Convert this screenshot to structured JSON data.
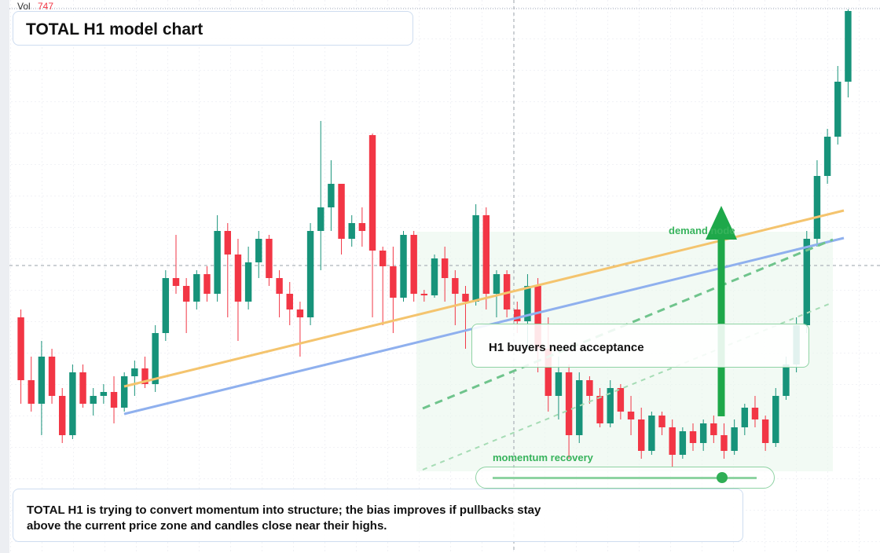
{
  "chart_data": {
    "type": "candlestick",
    "title": "TOTAL H1 model chart",
    "volume_label": "Vol",
    "volume_value": "747",
    "annotations": {
      "acceptance": "H1 buyers need acceptance",
      "demand": "demand node",
      "momentum": "momentum recovery"
    },
    "summary": [
      "TOTAL H1 is trying to convert momentum into structure; the bias improves if pullbacks stay",
      "above the current price zone and candles close near their highs."
    ],
    "up_color": "#17937a",
    "down_color": "#f23645",
    "ylim": [
      0,
      704
    ],
    "candles": [
      [
        300,
        310,
        190,
        220
      ],
      [
        220,
        250,
        180,
        190
      ],
      [
        190,
        270,
        150,
        250
      ],
      [
        250,
        260,
        190,
        200
      ],
      [
        200,
        210,
        140,
        150
      ],
      [
        150,
        240,
        145,
        230
      ],
      [
        230,
        240,
        185,
        190
      ],
      [
        190,
        210,
        175,
        200
      ],
      [
        200,
        215,
        190,
        205
      ],
      [
        205,
        225,
        165,
        185
      ],
      [
        185,
        230,
        180,
        225
      ],
      [
        225,
        245,
        200,
        235
      ],
      [
        235,
        250,
        210,
        215
      ],
      [
        215,
        290,
        205,
        280
      ],
      [
        280,
        360,
        270,
        350
      ],
      [
        350,
        405,
        330,
        340
      ],
      [
        340,
        350,
        280,
        320
      ],
      [
        320,
        360,
        310,
        355
      ],
      [
        355,
        365,
        320,
        330
      ],
      [
        330,
        430,
        320,
        410
      ],
      [
        410,
        420,
        300,
        380
      ],
      [
        380,
        400,
        270,
        320
      ],
      [
        320,
        390,
        310,
        370
      ],
      [
        370,
        410,
        350,
        400
      ],
      [
        400,
        405,
        340,
        350
      ],
      [
        350,
        360,
        300,
        330
      ],
      [
        330,
        345,
        290,
        310
      ],
      [
        310,
        320,
        250,
        300
      ],
      [
        300,
        420,
        290,
        410
      ],
      [
        410,
        550,
        360,
        440
      ],
      [
        440,
        500,
        410,
        470
      ],
      [
        470,
        470,
        380,
        400
      ],
      [
        400,
        430,
        390,
        420
      ],
      [
        420,
        440,
        390,
        410
      ],
      [
        532,
        534,
        300,
        385
      ],
      [
        385,
        390,
        290,
        365
      ],
      [
        365,
        390,
        280,
        325
      ],
      [
        325,
        410,
        320,
        405
      ],
      [
        405,
        410,
        320,
        330
      ],
      [
        330,
        335,
        320,
        328
      ],
      [
        328,
        380,
        325,
        375
      ],
      [
        375,
        390,
        320,
        350
      ],
      [
        350,
        360,
        290,
        330
      ],
      [
        330,
        340,
        260,
        320
      ],
      [
        320,
        444,
        315,
        430
      ],
      [
        430,
        440,
        310,
        330
      ],
      [
        330,
        360,
        300,
        355
      ],
      [
        355,
        360,
        300,
        310
      ],
      [
        310,
        320,
        280,
        295
      ],
      [
        295,
        355,
        260,
        340
      ],
      [
        340,
        350,
        230,
        260
      ],
      [
        260,
        300,
        180,
        200
      ],
      [
        200,
        250,
        170,
        230
      ],
      [
        230,
        240,
        120,
        150
      ],
      [
        150,
        230,
        140,
        220
      ],
      [
        220,
        225,
        190,
        200
      ],
      [
        200,
        210,
        160,
        165
      ],
      [
        165,
        220,
        160,
        210
      ],
      [
        210,
        215,
        170,
        180
      ],
      [
        180,
        200,
        150,
        170
      ],
      [
        170,
        185,
        120,
        130
      ],
      [
        130,
        180,
        125,
        175
      ],
      [
        175,
        180,
        150,
        160
      ],
      [
        160,
        170,
        110,
        125
      ],
      [
        125,
        160,
        120,
        155
      ],
      [
        155,
        165,
        130,
        140
      ],
      [
        140,
        170,
        130,
        165
      ],
      [
        165,
        175,
        140,
        150
      ],
      [
        150,
        165,
        120,
        130
      ],
      [
        130,
        170,
        125,
        160
      ],
      [
        160,
        190,
        150,
        185
      ],
      [
        185,
        200,
        160,
        170
      ],
      [
        170,
        175,
        130,
        140
      ],
      [
        140,
        210,
        135,
        200
      ],
      [
        200,
        250,
        195,
        240
      ],
      [
        240,
        300,
        230,
        290
      ],
      [
        290,
        410,
        280,
        400
      ],
      [
        400,
        500,
        390,
        480
      ],
      [
        480,
        540,
        470,
        530
      ],
      [
        530,
        620,
        520,
        600
      ],
      [
        600,
        692,
        580,
        690
      ]
    ]
  }
}
